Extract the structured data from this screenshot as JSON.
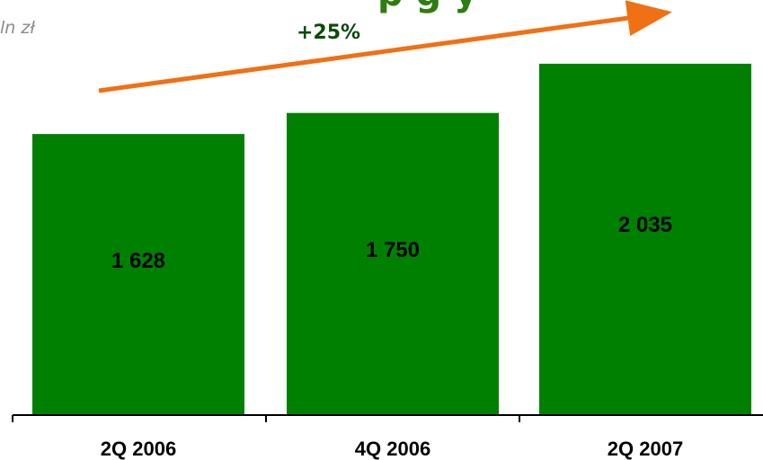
{
  "header": {
    "unit": "ln zł",
    "growth": "+25%"
  },
  "colors": {
    "bar": "#008000",
    "arrow": "#f07014",
    "axis": "#000000"
  },
  "chart_data": {
    "type": "bar",
    "categories": [
      "2Q 2006",
      "4Q 2006",
      "2Q 2007"
    ],
    "values": [
      1628,
      1750,
      2035
    ],
    "value_labels": [
      "1 628",
      "1 750",
      "2 035"
    ],
    "ylim": [
      0,
      2300
    ],
    "grid": false,
    "annotations": [
      {
        "text": "+25%",
        "type": "arrow",
        "from_category": "2Q 2006",
        "to_category": "2Q 2007"
      }
    ]
  }
}
